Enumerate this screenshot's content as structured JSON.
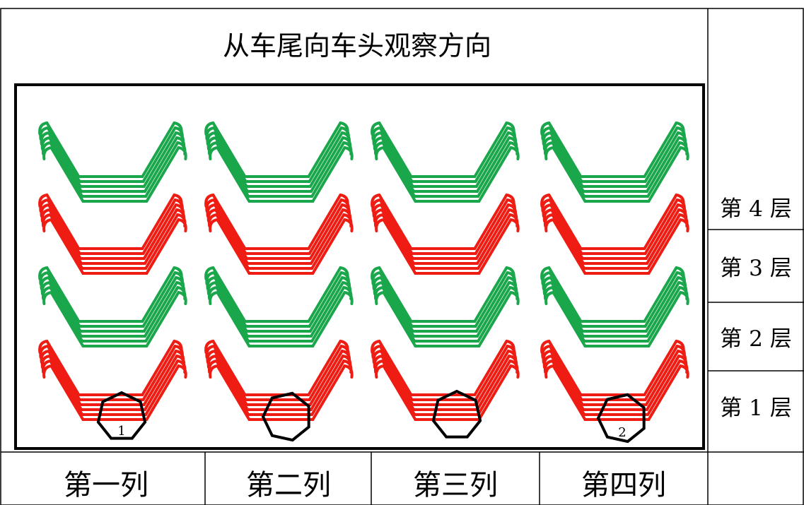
{
  "title": "从车尾向车头观察方向",
  "row_labels": [
    "第 4 层",
    "第 3 层",
    "第 2 层",
    "第 1 层"
  ],
  "column_labels": [
    "第一列",
    "第二列",
    "第三列",
    "第四列"
  ],
  "layer_colors": {
    "green": "#1aa64a",
    "red": "#ee1c12"
  },
  "column_stacks": [
    [
      "green",
      "red",
      "green",
      "red"
    ],
    [
      "green",
      "red",
      "green",
      "red"
    ],
    [
      "green",
      "red",
      "green",
      "red"
    ],
    [
      "green",
      "red",
      "green",
      "red"
    ]
  ],
  "coils": [
    {
      "column": 1,
      "label": "1"
    },
    {
      "column": 2,
      "label": ""
    },
    {
      "column": 3,
      "label": ""
    },
    {
      "column": 4,
      "label": "2"
    }
  ]
}
